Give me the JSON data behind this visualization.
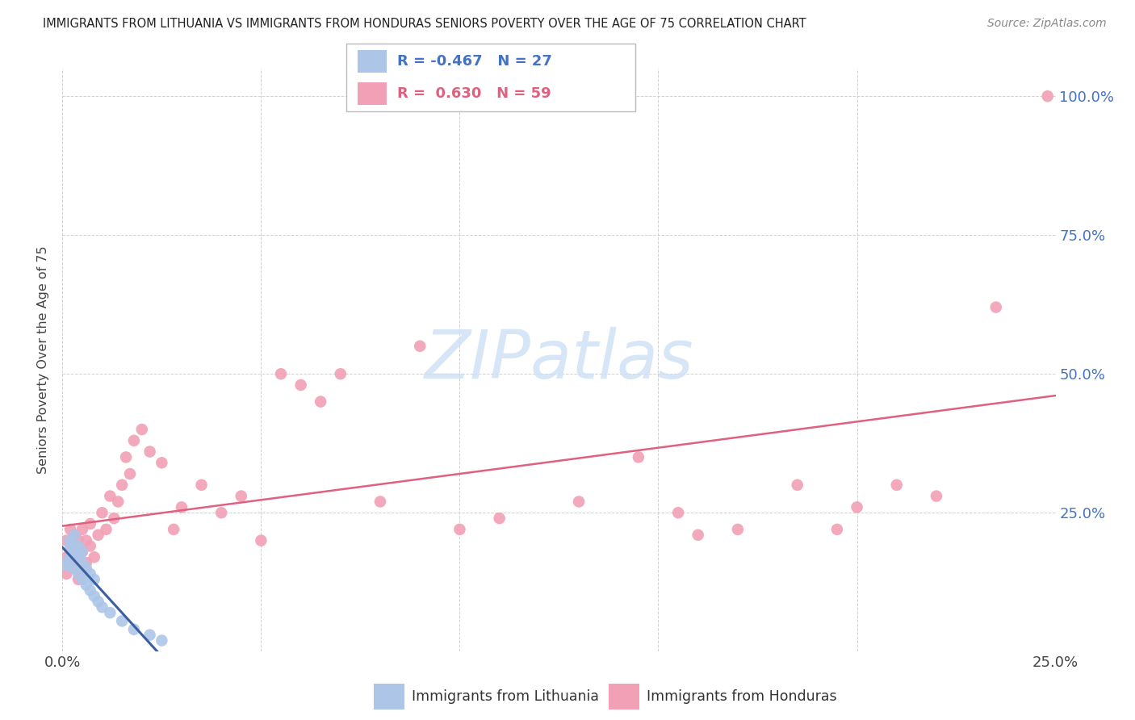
{
  "title": "IMMIGRANTS FROM LITHUANIA VS IMMIGRANTS FROM HONDURAS SENIORS POVERTY OVER THE AGE OF 75 CORRELATION CHART",
  "source": "Source: ZipAtlas.com",
  "ylabel": "Seniors Poverty Over the Age of 75",
  "xlim": [
    0.0,
    0.25
  ],
  "ylim": [
    0.0,
    1.05
  ],
  "color_lithuania": "#adc6e8",
  "color_honduras": "#f2a0b5",
  "color_line_lithuania": "#3a5fa0",
  "color_line_honduras": "#e06080",
  "color_axis_right": "#4472c4",
  "legend_R_lithuania": "-0.467",
  "legend_N_lithuania": "27",
  "legend_R_honduras": "0.630",
  "legend_N_honduras": "59",
  "lithuania_x": [
    0.001,
    0.001,
    0.002,
    0.002,
    0.002,
    0.003,
    0.003,
    0.003,
    0.004,
    0.004,
    0.004,
    0.005,
    0.005,
    0.005,
    0.006,
    0.006,
    0.007,
    0.007,
    0.008,
    0.008,
    0.009,
    0.01,
    0.012,
    0.015,
    0.018,
    0.022,
    0.025
  ],
  "lithuania_y": [
    0.155,
    0.16,
    0.17,
    0.19,
    0.2,
    0.15,
    0.18,
    0.21,
    0.14,
    0.17,
    0.19,
    0.13,
    0.16,
    0.18,
    0.12,
    0.15,
    0.11,
    0.14,
    0.1,
    0.13,
    0.09,
    0.08,
    0.07,
    0.055,
    0.04,
    0.03,
    0.02
  ],
  "honduras_x": [
    0.001,
    0.001,
    0.001,
    0.002,
    0.002,
    0.002,
    0.003,
    0.003,
    0.003,
    0.004,
    0.004,
    0.004,
    0.005,
    0.005,
    0.005,
    0.006,
    0.006,
    0.007,
    0.007,
    0.008,
    0.009,
    0.01,
    0.011,
    0.012,
    0.013,
    0.014,
    0.015,
    0.016,
    0.017,
    0.018,
    0.02,
    0.022,
    0.025,
    0.028,
    0.03,
    0.035,
    0.04,
    0.045,
    0.05,
    0.055,
    0.06,
    0.065,
    0.07,
    0.08,
    0.09,
    0.1,
    0.11,
    0.13,
    0.145,
    0.155,
    0.16,
    0.17,
    0.185,
    0.195,
    0.2,
    0.21,
    0.22,
    0.235,
    0.248
  ],
  "honduras_y": [
    0.14,
    0.17,
    0.2,
    0.16,
    0.19,
    0.22,
    0.15,
    0.18,
    0.21,
    0.13,
    0.17,
    0.2,
    0.14,
    0.18,
    0.22,
    0.16,
    0.2,
    0.19,
    0.23,
    0.17,
    0.21,
    0.25,
    0.22,
    0.28,
    0.24,
    0.27,
    0.3,
    0.35,
    0.32,
    0.38,
    0.4,
    0.36,
    0.34,
    0.22,
    0.26,
    0.3,
    0.25,
    0.28,
    0.2,
    0.5,
    0.48,
    0.45,
    0.5,
    0.27,
    0.55,
    0.22,
    0.24,
    0.27,
    0.35,
    0.25,
    0.21,
    0.22,
    0.3,
    0.22,
    0.26,
    0.3,
    0.28,
    0.62,
    1.0
  ]
}
